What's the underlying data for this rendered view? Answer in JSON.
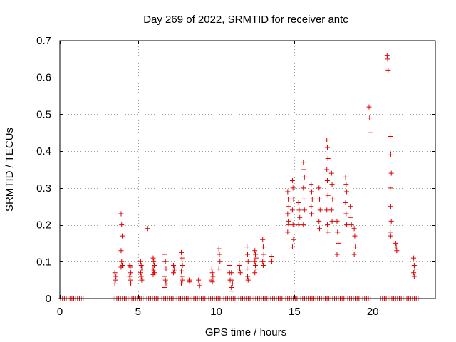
{
  "chart_data": {
    "type": "scatter",
    "title": "Day 269 of 2022, SRMTID for receiver antc",
    "xlabel": "GPS time / hours",
    "ylabel": "SRMTID / TECUs",
    "xlim": [
      0,
      24
    ],
    "ylim": [
      0,
      0.7
    ],
    "grid": true,
    "x_ticks": [
      0,
      5,
      10,
      15,
      20
    ],
    "x_tick_labels": [
      "0",
      "5",
      "10",
      "15",
      "20"
    ],
    "y_ticks": [
      0,
      0.1,
      0.2,
      0.3,
      0.4,
      0.5,
      0.6,
      0.7
    ],
    "y_tick_labels": [
      "0",
      "0.1",
      "0.2",
      "0.3",
      "0.4",
      "0.5",
      "0.6",
      "0.7"
    ],
    "marker": "+",
    "marker_color": "#e00000",
    "zero_runs": [
      [
        0.05,
        1.6
      ],
      [
        3.4,
        19.9
      ],
      [
        20.5,
        22.9
      ]
    ],
    "clusters": [
      {
        "x": 3.55,
        "y": [
          0.04,
          0.05,
          0.06,
          0.07
        ]
      },
      {
        "x": 3.95,
        "y": [
          0.23,
          0.2,
          0.17,
          0.13,
          0.1,
          0.09,
          0.085
        ]
      },
      {
        "x": 4.5,
        "y": [
          0.09,
          0.085,
          0.07,
          0.06,
          0.05,
          0.04
        ]
      },
      {
        "x": 5.2,
        "y": [
          0.1,
          0.09,
          0.08,
          0.07,
          0.06,
          0.05
        ]
      },
      {
        "x": 5.65,
        "y": [
          0.19
        ]
      },
      {
        "x": 6.0,
        "y": [
          0.11,
          0.1,
          0.09,
          0.08,
          0.075,
          0.07,
          0.065
        ]
      },
      {
        "x": 6.75,
        "y": [
          0.12,
          0.1,
          0.08,
          0.06,
          0.05,
          0.04,
          0.03
        ]
      },
      {
        "x": 7.3,
        "y": [
          0.09,
          0.08,
          0.075,
          0.07
        ]
      },
      {
        "x": 7.8,
        "y": [
          0.125,
          0.11,
          0.09,
          0.075,
          0.06,
          0.05,
          0.04
        ]
      },
      {
        "x": 8.3,
        "y": [
          0.05,
          0.045
        ]
      },
      {
        "x": 8.9,
        "y": [
          0.05,
          0.04,
          0.035
        ]
      },
      {
        "x": 9.75,
        "y": [
          0.08,
          0.07,
          0.06,
          0.05,
          0.045
        ]
      },
      {
        "x": 10.2,
        "y": [
          0.135,
          0.12,
          0.1,
          0.08
        ]
      },
      {
        "x": 10.85,
        "y": [
          0.09,
          0.07,
          0.05
        ]
      },
      {
        "x": 11.0,
        "y": [
          0.07,
          0.05,
          0.04,
          0.03,
          0.02
        ]
      },
      {
        "x": 11.5,
        "y": [
          0.09,
          0.08,
          0.07
        ]
      },
      {
        "x": 12.0,
        "y": [
          0.14,
          0.12,
          0.1,
          0.08,
          0.06,
          0.05
        ]
      },
      {
        "x": 12.5,
        "y": [
          0.13,
          0.12,
          0.11,
          0.1,
          0.09,
          0.08,
          0.07
        ]
      },
      {
        "x": 13.0,
        "y": [
          0.16,
          0.14,
          0.12,
          0.1,
          0.09
        ]
      },
      {
        "x": 13.55,
        "y": [
          0.115,
          0.1
        ]
      },
      {
        "x": 14.6,
        "y": [
          0.29,
          0.27,
          0.25,
          0.23,
          0.21,
          0.2,
          0.18
        ]
      },
      {
        "x": 14.9,
        "y": [
          0.32,
          0.3,
          0.27,
          0.24,
          0.2,
          0.16,
          0.14
        ]
      },
      {
        "x": 15.3,
        "y": [
          0.26,
          0.24,
          0.22,
          0.2
        ]
      },
      {
        "x": 15.6,
        "y": [
          0.37,
          0.35,
          0.33,
          0.3,
          0.27,
          0.24,
          0.2
        ]
      },
      {
        "x": 16.1,
        "y": [
          0.31,
          0.29,
          0.27,
          0.25,
          0.23
        ]
      },
      {
        "x": 16.6,
        "y": [
          0.3,
          0.27,
          0.24,
          0.21,
          0.19
        ]
      },
      {
        "x": 17.1,
        "y": [
          0.43,
          0.41,
          0.38,
          0.35,
          0.32,
          0.28,
          0.24,
          0.2,
          0.18
        ]
      },
      {
        "x": 17.4,
        "y": [
          0.34,
          0.31,
          0.27,
          0.24,
          0.21
        ]
      },
      {
        "x": 17.75,
        "y": [
          0.21,
          0.18,
          0.15,
          0.12
        ]
      },
      {
        "x": 18.3,
        "y": [
          0.33,
          0.31,
          0.29,
          0.26,
          0.23,
          0.2
        ]
      },
      {
        "x": 18.6,
        "y": [
          0.25,
          0.22,
          0.2
        ]
      },
      {
        "x": 18.85,
        "y": [
          0.19,
          0.17,
          0.14,
          0.12
        ]
      },
      {
        "x": 19.8,
        "y": [
          0.52,
          0.49,
          0.45
        ]
      },
      {
        "x": 20.95,
        "y": [
          0.66,
          0.65,
          0.62
        ]
      },
      {
        "x": 21.15,
        "y": [
          0.44,
          0.39,
          0.34,
          0.3,
          0.25,
          0.21,
          0.18,
          0.17
        ]
      },
      {
        "x": 21.5,
        "y": [
          0.15,
          0.14,
          0.13
        ]
      },
      {
        "x": 22.65,
        "y": [
          0.11,
          0.09,
          0.08,
          0.07,
          0.06
        ]
      }
    ]
  }
}
